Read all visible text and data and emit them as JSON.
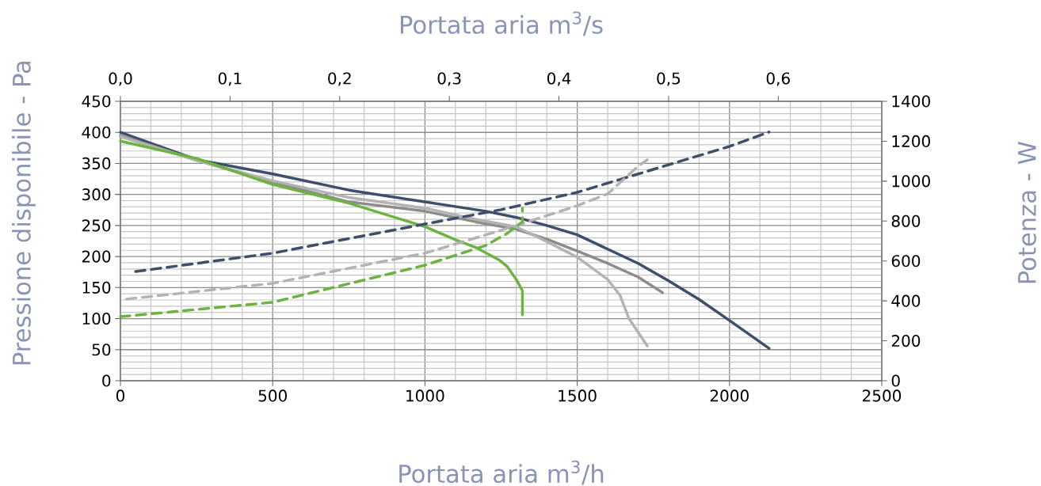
{
  "chart_data": {
    "type": "line",
    "xlabel": "Portata aria m$^{3}$/h",
    "ylabel": "Pressione disponibile - Pa",
    "y2label": "Potenza - W",
    "x2label": "Portata aria m$^{3}$/s",
    "xlim": [
      0,
      2500
    ],
    "xticks": [
      0,
      500,
      1000,
      1500,
      2000,
      2500
    ],
    "ylim": [
      0,
      450
    ],
    "yticks": [
      0,
      50,
      100,
      150,
      200,
      250,
      300,
      350,
      400,
      450
    ],
    "y2lim": [
      0,
      1400
    ],
    "y2ticks": [
      0,
      200,
      400,
      600,
      800,
      1000,
      1200,
      1400
    ],
    "x2lim": [
      0,
      0.69444
    ],
    "x2ticks": [
      {
        "value": 0,
        "label": "0,0"
      },
      {
        "value": 0.1,
        "label": "0,1"
      },
      {
        "value": 0.2,
        "label": "0,2"
      },
      {
        "value": 0.3,
        "label": "0,3"
      },
      {
        "value": 0.4,
        "label": "0,4"
      },
      {
        "value": 0.5,
        "label": "0,5"
      },
      {
        "value": 0.6,
        "label": "0,6"
      }
    ],
    "grid": true,
    "marker": "none",
    "series": [
      {
        "color": "#3e4f6b",
        "line_style": "solid",
        "x": [
          0,
          250,
          500,
          750,
          1000,
          1200,
          1300,
          1400,
          1500,
          1600,
          1700,
          1800,
          1900,
          2000,
          2130
        ],
        "values": [
          400,
          356,
          333,
          307,
          288,
          273,
          263,
          250,
          235,
          212,
          189,
          161,
          131,
          97,
          52
        ]
      },
      {
        "color": "#8c8c8c",
        "line_style": "solid",
        "x": [
          0,
          250,
          500,
          750,
          1000,
          1165,
          1300,
          1400,
          1500,
          1600,
          1700,
          1780
        ],
        "values": [
          395,
          355,
          320,
          288,
          273,
          256,
          244,
          228,
          209,
          189,
          167,
          142
        ]
      },
      {
        "color": "#b3b3b3",
        "line_style": "solid",
        "x": [
          0,
          250,
          500,
          750,
          1000,
          1165,
          1300,
          1400,
          1500,
          1600,
          1640,
          1670,
          1730
        ],
        "values": [
          393,
          355,
          322,
          295,
          278,
          260,
          248,
          224,
          199,
          163,
          138,
          100,
          56
        ]
      },
      {
        "color": "#6cb33f",
        "line_style": "solid",
        "x": [
          0,
          250,
          500,
          750,
          1000,
          1100,
          1165,
          1245,
          1270,
          1300,
          1320,
          1320
        ],
        "values": [
          386,
          358,
          316,
          286,
          248,
          227,
          215,
          194,
          184,
          163,
          145,
          106
        ]
      },
      {
        "color": "#3e4f6b",
        "line_style": "dashed",
        "axis": "y2",
        "x": [
          50,
          500,
          1000,
          1250,
          1500,
          2000,
          2130
        ],
        "values": [
          547,
          639,
          785,
          857,
          944,
          1174,
          1246
        ]
      },
      {
        "color": "#b3b3b3",
        "line_style": "dashed",
        "axis": "y2",
        "x": [
          20,
          500,
          1000,
          1300,
          1500,
          1600,
          1700,
          1730
        ],
        "values": [
          409,
          488,
          639,
          777,
          877,
          936,
          1075,
          1107
        ]
      },
      {
        "color": "#6cb33f",
        "line_style": "dashed",
        "axis": "y2",
        "x": [
          0,
          500,
          1000,
          1200,
          1270,
          1320,
          1320
        ],
        "values": [
          321,
          393,
          579,
          678,
          738,
          797,
          865
        ]
      }
    ]
  }
}
